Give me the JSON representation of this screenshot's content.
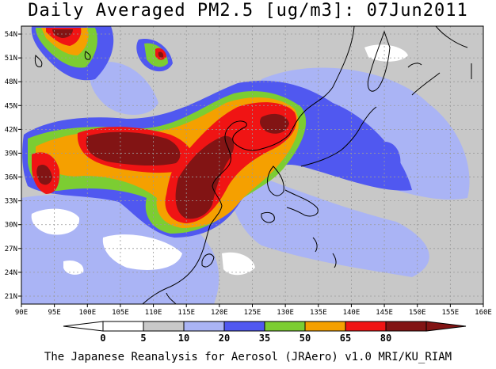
{
  "title": "Daily Averaged PM2.5 [ug/m3]: 07Jun2011",
  "footer": "The Japanese Reanalysis for Aerosol (JRAero) v1.0 MRI/KU_RIAM",
  "map": {
    "lon_range": [
      90,
      160
    ],
    "lat_range": [
      20,
      55
    ],
    "lon_ticks": [
      "90E",
      "95E",
      "100E",
      "105E",
      "110E",
      "115E",
      "120E",
      "125E",
      "130E",
      "135E",
      "140E",
      "145E",
      "150E",
      "155E",
      "160E"
    ],
    "lat_ticks": [
      "21N",
      "24N",
      "27N",
      "30N",
      "33N",
      "36N",
      "39N",
      "42N",
      "45N",
      "48N",
      "51N",
      "54N"
    ]
  },
  "colorbar": {
    "labels": [
      "0",
      "5",
      "10",
      "20",
      "35",
      "50",
      "65",
      "80"
    ],
    "colors": [
      "#ffffff",
      "#c8c8c8",
      "#aab4f5",
      "#5058f0",
      "#7ccd32",
      "#f5a000",
      "#f01414",
      "#821414"
    ],
    "low_color": "#ffffff",
    "high_color": "#821414"
  },
  "colors": {
    "background": "#c8c8c8",
    "level_10": "#aab4f5",
    "level_20": "#5058f0",
    "level_35": "#7ccd32",
    "level_50": "#f5a000",
    "level_65": "#f01414",
    "level_80": "#821414",
    "coast": "#000000",
    "grid": "#9a9a9a"
  }
}
